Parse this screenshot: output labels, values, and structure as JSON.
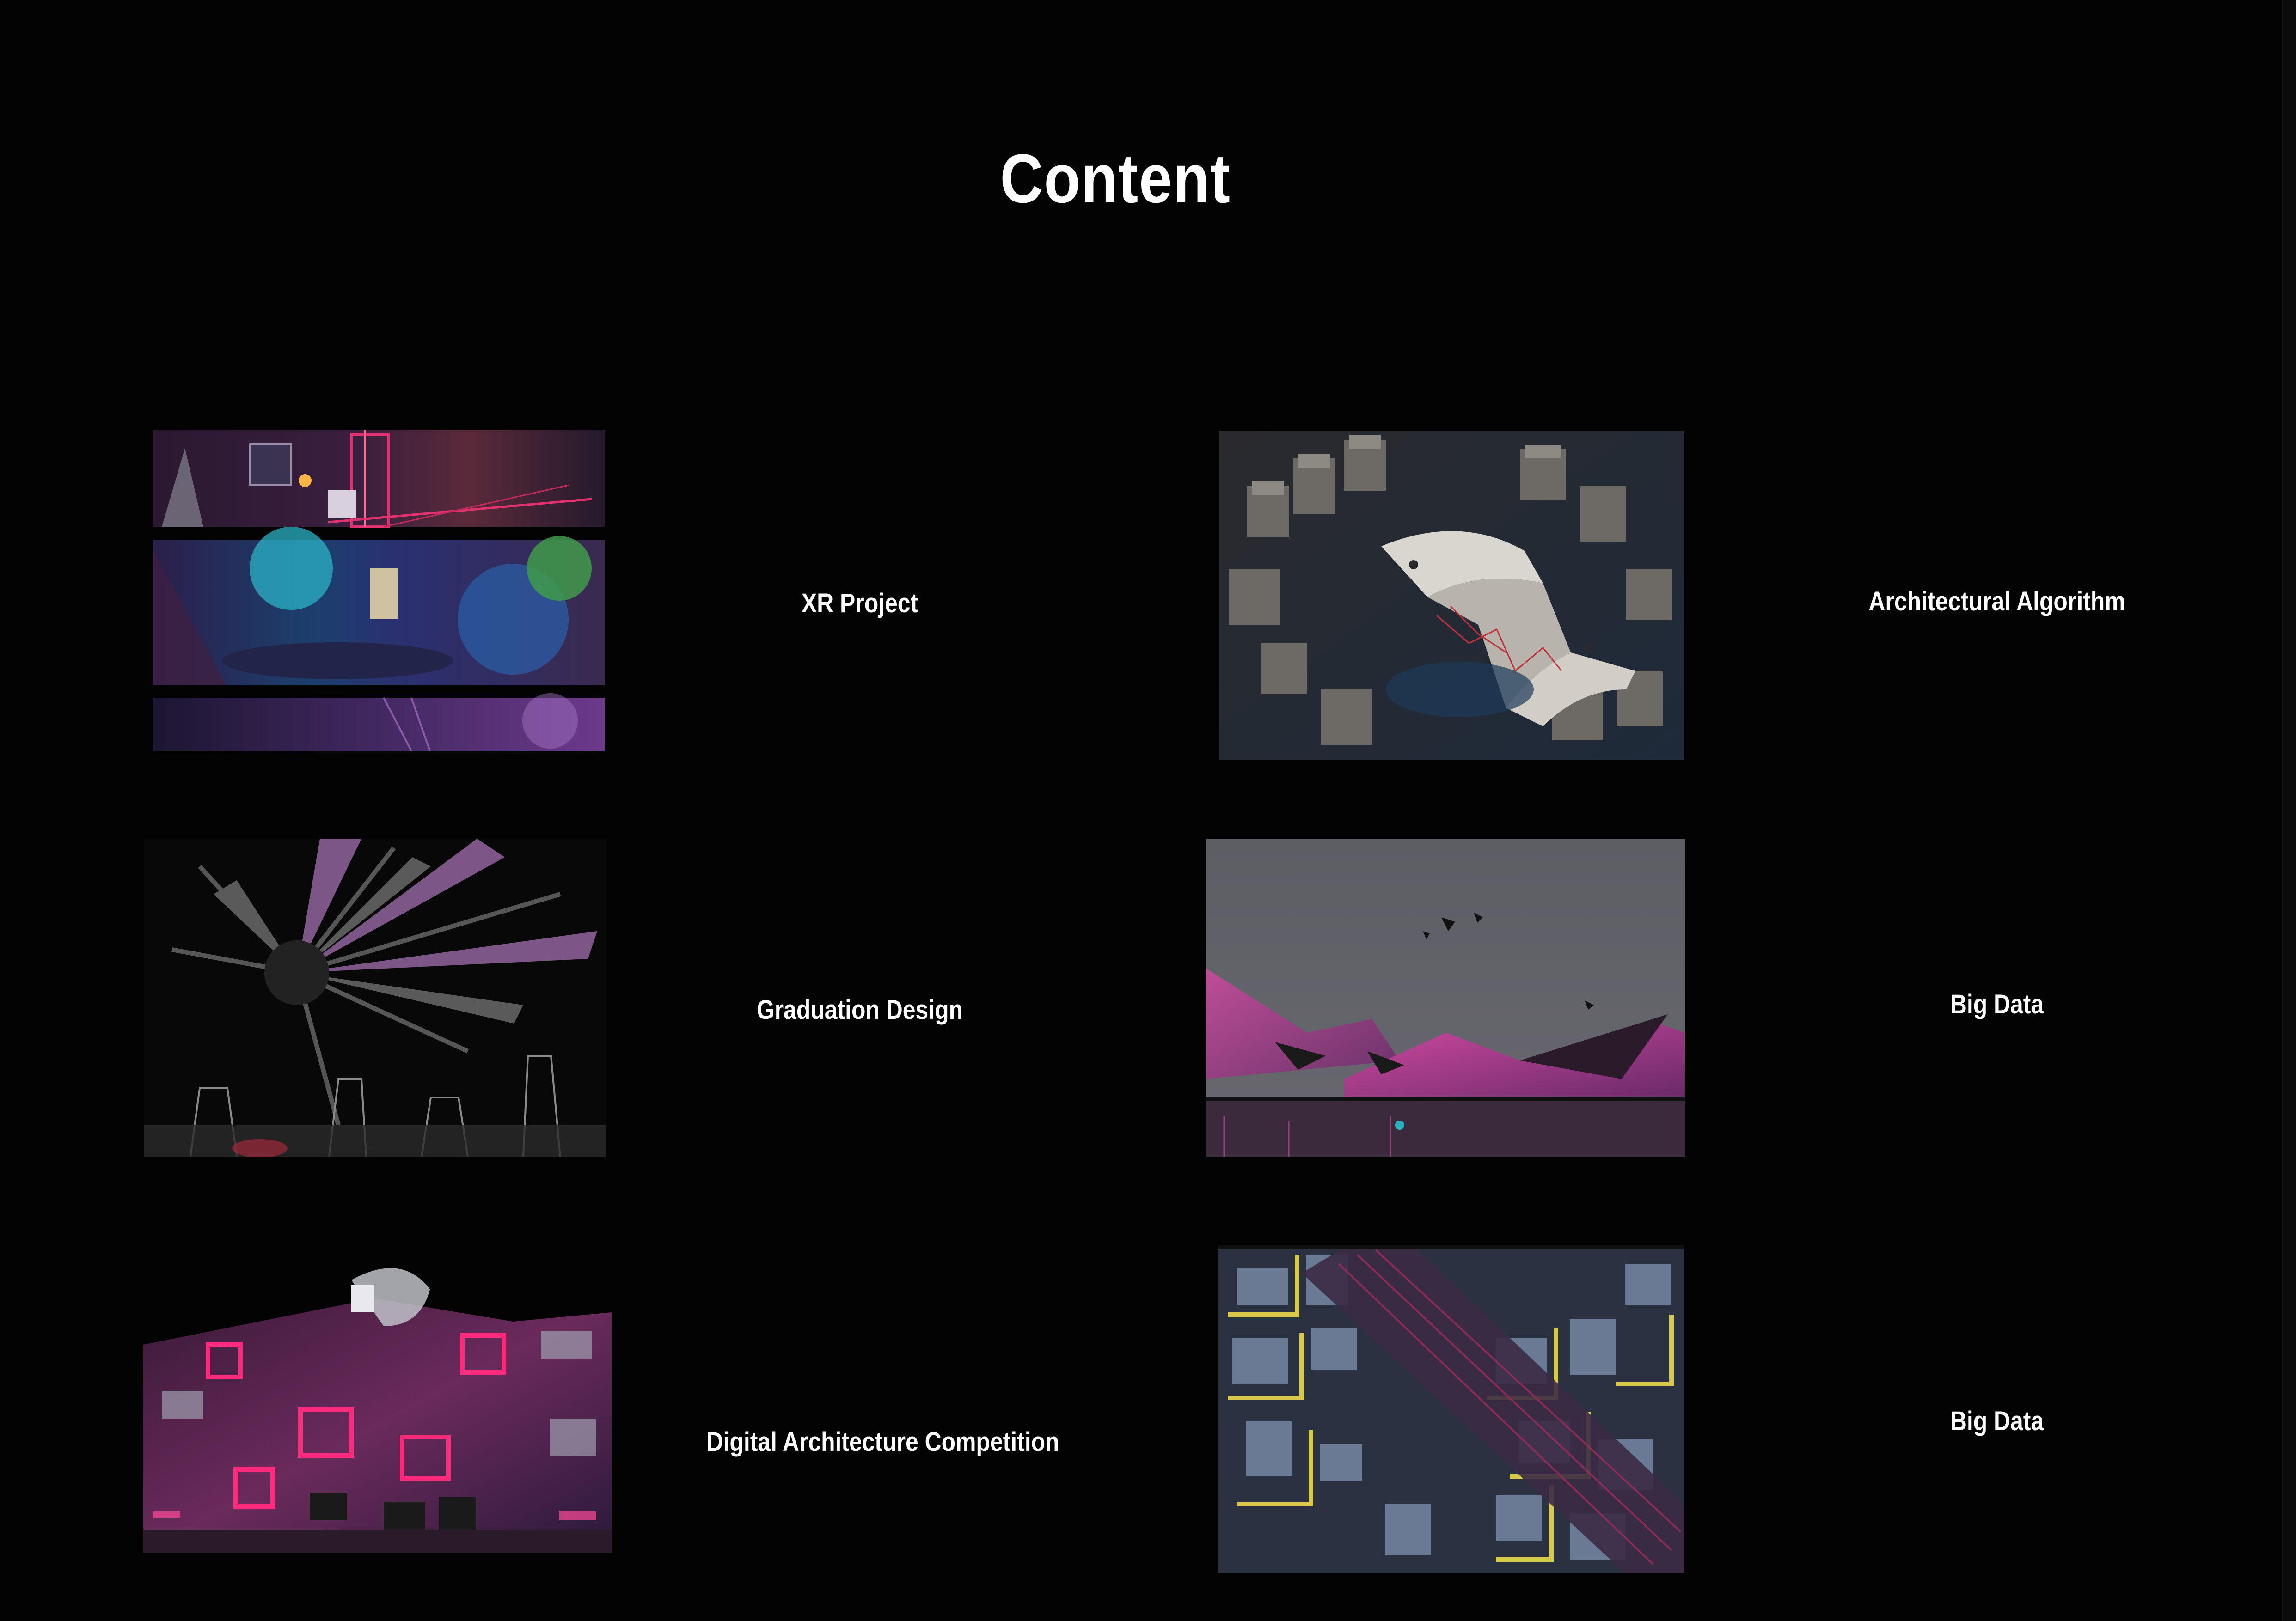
{
  "title": "Content",
  "items": [
    {
      "label": "XR Project",
      "icon": "xr-project-thumbnail"
    },
    {
      "label": "Architectural Algorithm",
      "icon": "architectural-algorithm-thumbnail"
    },
    {
      "label": "Graduation Design",
      "icon": "graduation-design-thumbnail"
    },
    {
      "label": "Big Data",
      "icon": "big-data-landscape-thumbnail"
    },
    {
      "label": "Digital Architecture Competition",
      "icon": "digital-architecture-competition-thumbnail"
    },
    {
      "label": "Big Data",
      "icon": "big-data-city-map-thumbnail"
    }
  ],
  "colors": {
    "background": "#030303",
    "text": "#ffffff",
    "accent_pink": "#e0326e",
    "accent_purple": "#7a3fa8",
    "accent_yellow": "#d8c94a"
  }
}
